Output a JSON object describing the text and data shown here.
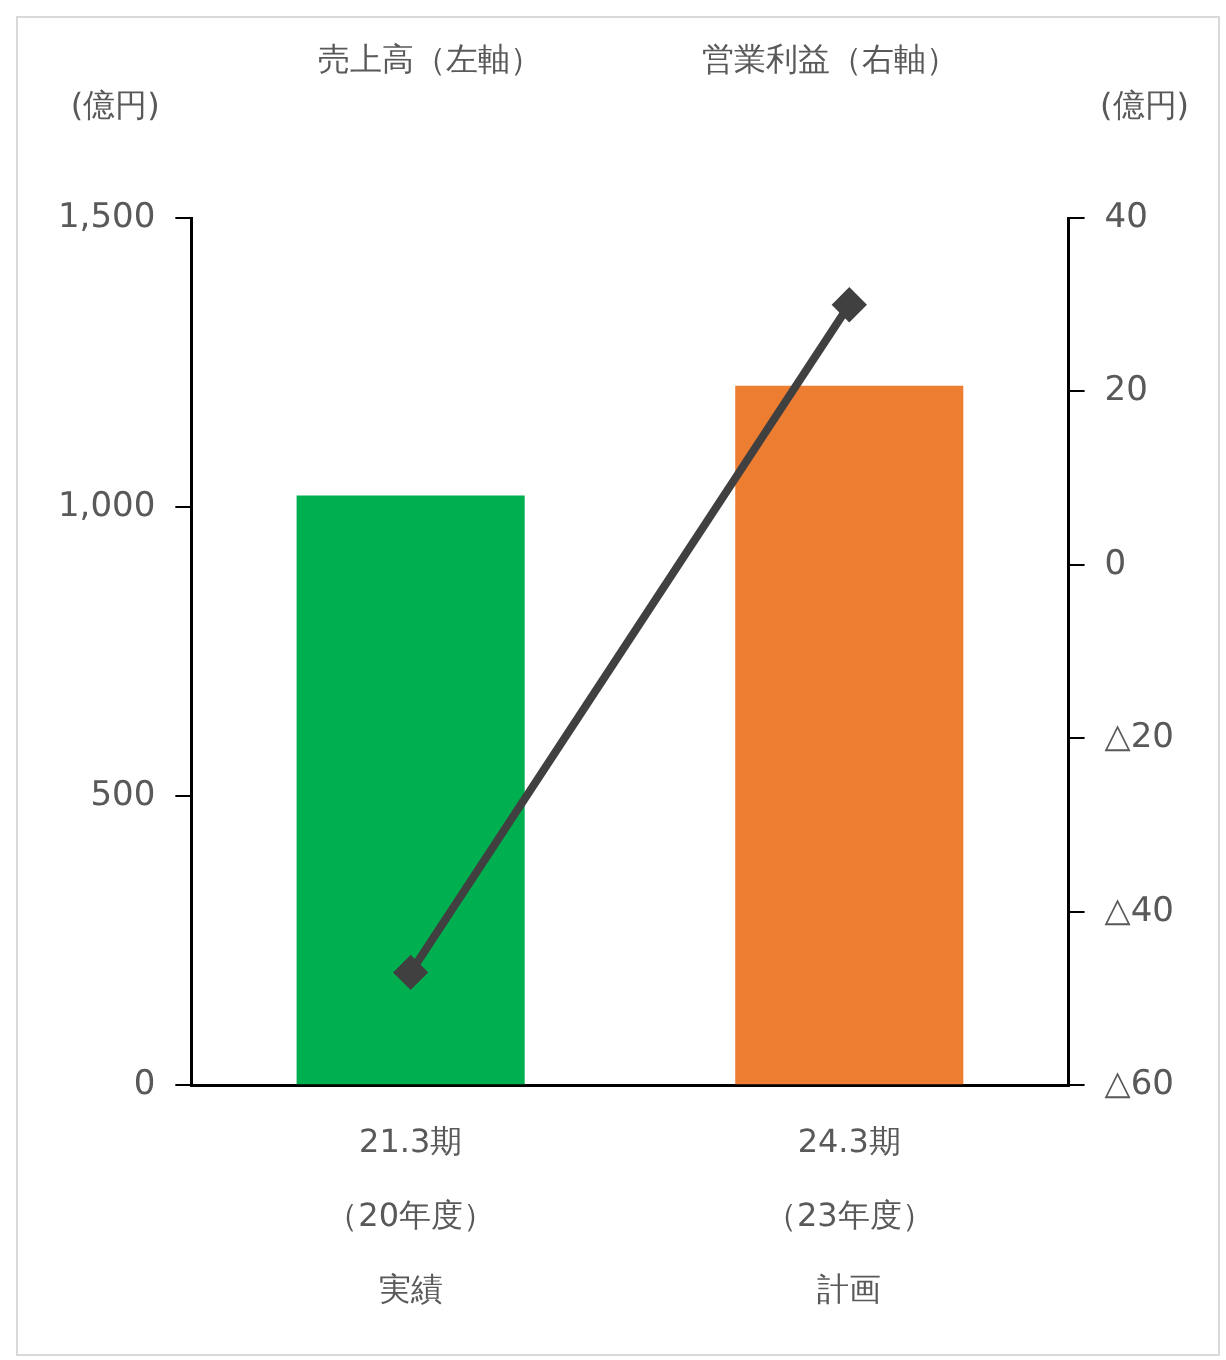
{
  "chart_data": {
    "type": "bar",
    "categories": [
      "21.3期（20年度）実績",
      "24.3期（23年度）計画"
    ],
    "series": [
      {
        "colors": [
          "#00b050",
          "#ed7d31"
        ],
        "values": [
          1020,
          1210
        ]
      },
      {
        "type": "line",
        "axis": "y2",
        "color": "#404040",
        "values": [
          -47,
          30
        ],
        "marker": "diamond"
      }
    ],
    "annotations": [
      "売上高（左軸）",
      "営業利益（右軸）"
    ],
    "ylabel": "(億円)",
    "y2label": "(億円)",
    "ylim": [
      0,
      1500
    ],
    "yticks": [
      0,
      {
        "value": 500,
        "label": "500"
      },
      {
        "value": 1000,
        "label": "1,000"
      },
      {
        "value": 1500,
        "label": "1,500"
      }
    ],
    "y2lim": [
      -60,
      40
    ],
    "y2ticks": [
      {
        "value": -60,
        "label": "△60"
      },
      {
        "value": -40,
        "label": "△40"
      },
      {
        "value": -20,
        "label": "△20"
      },
      0,
      20,
      40
    ],
    "grid": false
  }
}
